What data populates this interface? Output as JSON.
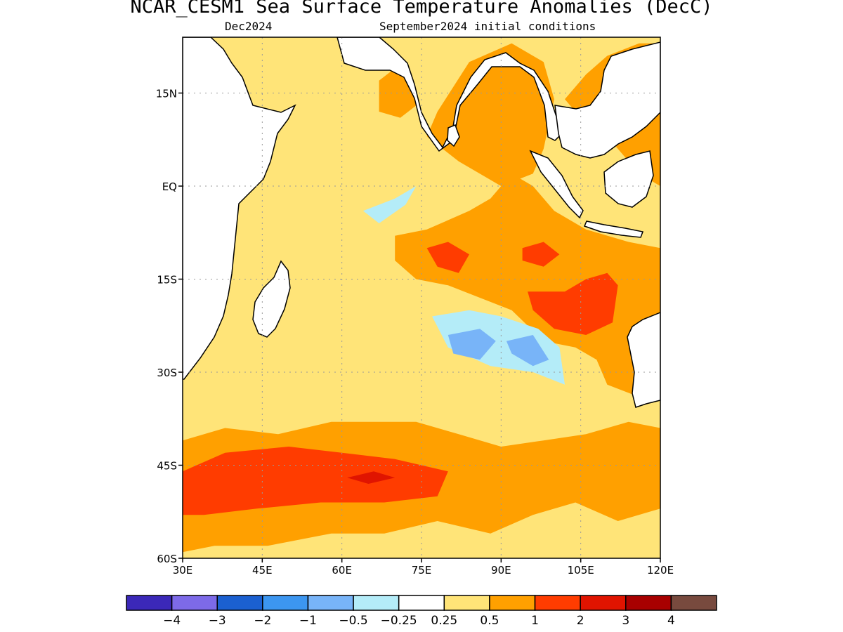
{
  "chart_data": {
    "type": "heatmap",
    "title": "NCAR_CESM1 Sea Surface Temperature Anomalies (DecC)",
    "subtitle_left": "Dec2024",
    "subtitle_right": "September2024 initial conditions",
    "x_ticks": [
      "30E",
      "45E",
      "60E",
      "75E",
      "90E",
      "105E",
      "120E"
    ],
    "x_tick_values": [
      30,
      45,
      60,
      75,
      90,
      105,
      120
    ],
    "y_ticks": [
      "15N",
      "EQ",
      "15S",
      "30S",
      "45S",
      "60S"
    ],
    "y_tick_values": [
      15,
      0,
      -15,
      -30,
      -45,
      -60
    ],
    "xlim": [
      30,
      120
    ],
    "ylim": [
      -60,
      24
    ],
    "grid": true,
    "colorbar": {
      "colors": [
        "#3b28b8",
        "#7d6ae8",
        "#1b60d0",
        "#3c96f0",
        "#78b4f8",
        "#b4ecf8",
        "#ffffff",
        "#ffe478",
        "#ffa000",
        "#ff3c00",
        "#e01400",
        "#a80000",
        "#784a3e"
      ],
      "labels": [
        "−4",
        "−3",
        "−2",
        "−1",
        "−0.5",
        "−0.25",
        "0.25",
        "0.5",
        "1",
        "2",
        "3",
        "4"
      ]
    },
    "regions": [
      {
        "name": "bay-of-bengal-warm",
        "category": "0.5 to 1",
        "color": "#ffa000",
        "points": [
          [
            78,
            12
          ],
          [
            84,
            20
          ],
          [
            92,
            23
          ],
          [
            98,
            20
          ],
          [
            100,
            14
          ],
          [
            98,
            6
          ],
          [
            96,
            2
          ],
          [
            90,
            0
          ],
          [
            82,
            4
          ],
          [
            76,
            8
          ]
        ]
      },
      {
        "name": "eastern-warm-band",
        "category": "0.5 to 1",
        "color": "#ffa000",
        "points": [
          [
            70,
            -8
          ],
          [
            76,
            -7
          ],
          [
            84,
            -4
          ],
          [
            88,
            -2
          ],
          [
            92,
            2
          ],
          [
            96,
            0
          ],
          [
            100,
            -4
          ],
          [
            106,
            -7
          ],
          [
            114,
            -9
          ],
          [
            120,
            -10
          ],
          [
            120,
            -32
          ],
          [
            116,
            -34
          ],
          [
            110,
            -32
          ],
          [
            108,
            -28
          ],
          [
            104,
            -26
          ],
          [
            98,
            -25
          ],
          [
            92,
            -20
          ],
          [
            86,
            -18
          ],
          [
            80,
            -16
          ],
          [
            74,
            -15
          ],
          [
            70,
            -12
          ]
        ]
      },
      {
        "name": "south-china-sea-warm",
        "category": "0.5 to 1",
        "color": "#ffa000",
        "points": [
          [
            102,
            14
          ],
          [
            106,
            18
          ],
          [
            110,
            21
          ],
          [
            116,
            23
          ],
          [
            120,
            23
          ],
          [
            120,
            0
          ],
          [
            116,
            2
          ],
          [
            112,
            6
          ],
          [
            108,
            10
          ],
          [
            104,
            12
          ]
        ]
      },
      {
        "name": "southern-warm-band",
        "category": "0.5 to 1",
        "color": "#ffa000",
        "points": [
          [
            30,
            -41
          ],
          [
            38,
            -39
          ],
          [
            48,
            -40
          ],
          [
            58,
            -38
          ],
          [
            66,
            -38
          ],
          [
            74,
            -38
          ],
          [
            82,
            -40
          ],
          [
            90,
            -42
          ],
          [
            98,
            -41
          ],
          [
            106,
            -40
          ],
          [
            114,
            -38
          ],
          [
            120,
            -39
          ],
          [
            120,
            -52
          ],
          [
            112,
            -54
          ],
          [
            104,
            -51
          ],
          [
            96,
            -53
          ],
          [
            88,
            -56
          ],
          [
            78,
            -54
          ],
          [
            68,
            -56
          ],
          [
            58,
            -56
          ],
          [
            46,
            -58
          ],
          [
            36,
            -58
          ],
          [
            30,
            -59
          ]
        ]
      },
      {
        "name": "arabian-sea-warm",
        "category": "0.5 to 1",
        "color": "#ffa000",
        "points": [
          [
            67,
            17
          ],
          [
            70,
            19
          ],
          [
            73,
            18
          ],
          [
            74,
            13
          ],
          [
            71,
            11
          ],
          [
            67,
            12
          ]
        ]
      },
      {
        "name": "southern-strong-warm",
        "category": "1 to 2",
        "color": "#ff3c00",
        "points": [
          [
            30,
            -46
          ],
          [
            38,
            -43
          ],
          [
            50,
            -42
          ],
          [
            60,
            -43
          ],
          [
            70,
            -44
          ],
          [
            80,
            -46
          ],
          [
            78,
            -50
          ],
          [
            68,
            -51
          ],
          [
            56,
            -51
          ],
          [
            44,
            -52
          ],
          [
            34,
            -53
          ],
          [
            30,
            -53
          ]
        ]
      },
      {
        "name": "central-strong-warm-1",
        "category": "1 to 2",
        "color": "#ff3c00",
        "points": [
          [
            76,
            -10
          ],
          [
            80,
            -9
          ],
          [
            84,
            -11
          ],
          [
            82,
            -14
          ],
          [
            78,
            -13
          ]
        ]
      },
      {
        "name": "central-strong-warm-2",
        "category": "1 to 2",
        "color": "#ff3c00",
        "points": [
          [
            94,
            -10
          ],
          [
            98,
            -9
          ],
          [
            101,
            -11
          ],
          [
            98,
            -13
          ],
          [
            94,
            -12
          ]
        ]
      },
      {
        "name": "eastern-strong-warm",
        "category": "1 to 2",
        "color": "#ff3c00",
        "points": [
          [
            95,
            -17
          ],
          [
            102,
            -17
          ],
          [
            106,
            -15
          ],
          [
            110,
            -14
          ],
          [
            112,
            -16
          ],
          [
            111,
            -22
          ],
          [
            106,
            -24
          ],
          [
            100,
            -23
          ],
          [
            96,
            -20
          ]
        ]
      },
      {
        "name": "south-china-strong-warm",
        "category": "1 to 2",
        "color": "#ff3c00",
        "points": [
          [
            116,
            16
          ],
          [
            118,
            19
          ],
          [
            120,
            19
          ],
          [
            120,
            13
          ],
          [
            117,
            13
          ]
        ]
      },
      {
        "name": "southern-peak-warm",
        "category": "2 to 3",
        "color": "#e01400",
        "points": [
          [
            61,
            -47
          ],
          [
            66,
            -46
          ],
          [
            70,
            -47
          ],
          [
            65,
            -48
          ]
        ]
      },
      {
        "name": "west-equatorial-cool",
        "category": "-0.5 to -0.25",
        "color": "#b4ecf8",
        "points": [
          [
            64,
            -4
          ],
          [
            70,
            -2
          ],
          [
            74,
            0
          ],
          [
            72,
            -3
          ],
          [
            67,
            -6
          ]
        ]
      },
      {
        "name": "south-central-cool",
        "category": "-0.5 to -0.25",
        "color": "#b4ecf8",
        "points": [
          [
            77,
            -21
          ],
          [
            84,
            -20
          ],
          [
            90,
            -21
          ],
          [
            97,
            -23
          ],
          [
            101,
            -26
          ],
          [
            102,
            -32
          ],
          [
            96,
            -30
          ],
          [
            88,
            -29
          ],
          [
            80,
            -26
          ]
        ]
      },
      {
        "name": "south-central-cooler-1",
        "category": "-1 to -0.5",
        "color": "#78b4f8",
        "points": [
          [
            80,
            -24
          ],
          [
            86,
            -23
          ],
          [
            89,
            -25
          ],
          [
            86,
            -28
          ],
          [
            81,
            -27
          ]
        ]
      },
      {
        "name": "south-central-cooler-2",
        "category": "-1 to -0.5",
        "color": "#78b4f8",
        "points": [
          [
            91,
            -25
          ],
          [
            96,
            -24
          ],
          [
            99,
            -28
          ],
          [
            96,
            -29
          ],
          [
            92,
            -27
          ]
        ]
      }
    ]
  }
}
